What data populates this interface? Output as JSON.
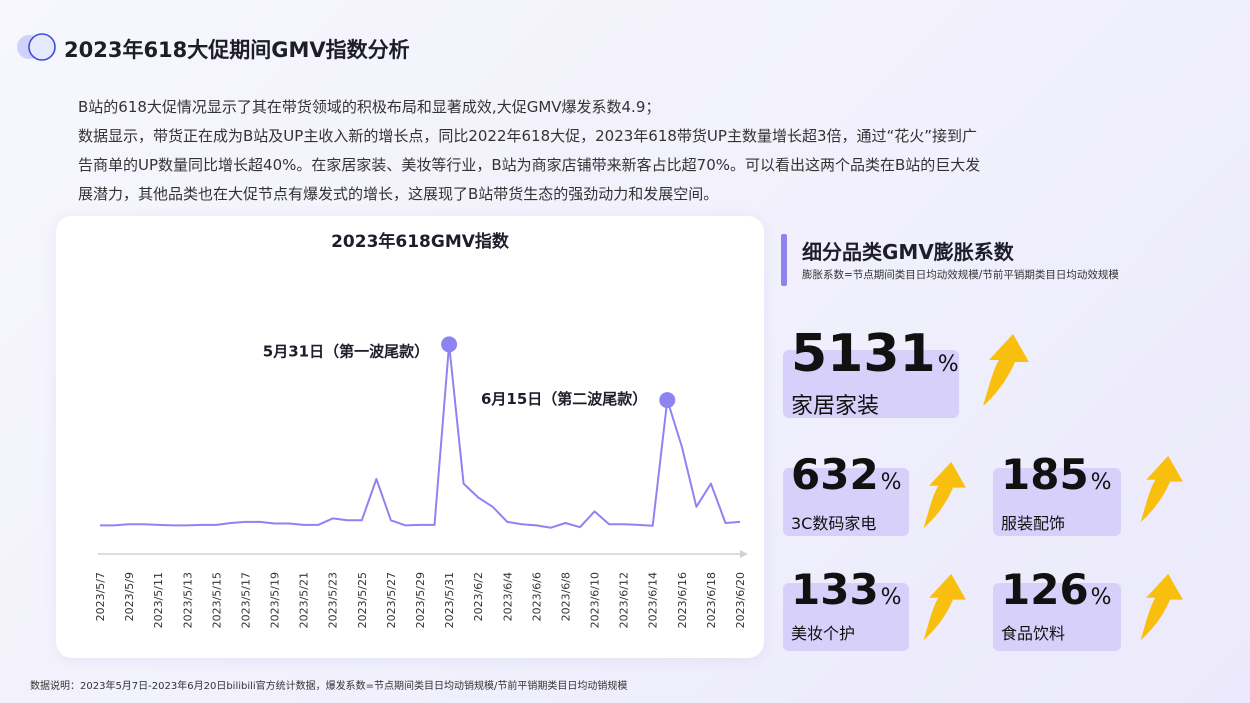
{
  "header": {
    "title": "2023年618大促期间GMV指数分析"
  },
  "description": {
    "lines": [
      "B站的618大促情况显示了其在带货领域的积极布局和显著成效,大促GMV爆发系数4.9；",
      "数据显示，带货正在成为B站及UP主收入新的增长点，同比2022年618大促，2023年618带货UP主数量增长超3倍，通过“花火”接到广",
      "告商单的UP数量同比增长超40%。在家居家装、美妆等行业，B站为商家店铺带来新客占比超70%。可以看出这两个品类在B站的巨大发",
      "展潜力，其他品类也在大促节点有爆发式的增长，这展现了B站带货生态的强劲动力和发展空间。"
    ]
  },
  "chart_data": {
    "type": "line",
    "title": "2023年618GMV指数",
    "xlabel": "",
    "ylabel": "",
    "grid": false,
    "y_axis_visible": false,
    "ylim": [
      0,
      100
    ],
    "x": [
      "2023/5/7",
      "2023/5/8",
      "2023/5/9",
      "2023/5/10",
      "2023/5/11",
      "2023/5/12",
      "2023/5/13",
      "2023/5/14",
      "2023/5/15",
      "2023/5/16",
      "2023/5/17",
      "2023/5/18",
      "2023/5/19",
      "2023/5/20",
      "2023/5/21",
      "2023/5/22",
      "2023/5/23",
      "2023/5/24",
      "2023/5/25",
      "2023/5/26",
      "2023/5/27",
      "2023/5/28",
      "2023/5/29",
      "2023/5/30",
      "2023/5/31",
      "2023/6/1",
      "2023/6/2",
      "2023/6/3",
      "2023/6/4",
      "2023/6/5",
      "2023/6/6",
      "2023/6/7",
      "2023/6/8",
      "2023/6/9",
      "2023/6/10",
      "2023/6/11",
      "2023/6/12",
      "2023/6/13",
      "2023/6/14",
      "2023/6/15",
      "2023/6/16",
      "2023/6/17",
      "2023/6/18",
      "2023/6/19",
      "2023/6/20"
    ],
    "tick_labels": [
      "2023/5/7",
      "2023/5/9",
      "2023/5/11",
      "2023/5/13",
      "2023/5/15",
      "2023/5/17",
      "2023/5/19",
      "2023/5/21",
      "2023/5/23",
      "2023/5/25",
      "2023/5/27",
      "2023/5/29",
      "2023/5/31",
      "2023/6/2",
      "2023/6/4",
      "2023/6/6",
      "2023/6/8",
      "2023/6/10",
      "2023/6/12",
      "2023/6/14",
      "2023/6/16",
      "2023/6/18",
      "2023/6/20"
    ],
    "series": [
      {
        "name": "",
        "color": "#8f83f2",
        "values": [
          2,
          2,
          2.5,
          2.5,
          2.2,
          2,
          2,
          2.2,
          2.2,
          3,
          3.5,
          3.5,
          2.8,
          2.8,
          2.2,
          2.2,
          5,
          4.2,
          4.2,
          22,
          4.2,
          2,
          2.2,
          2.2,
          80,
          20,
          14,
          10,
          3.5,
          2.5,
          2,
          1,
          3,
          1.2,
          8,
          2.5,
          2.5,
          2.2,
          1.8,
          56,
          36,
          10,
          20,
          3,
          3.5
        ]
      }
    ],
    "annotations": [
      {
        "x": "2023/5/31",
        "label": "5月31日（第一波尾款）"
      },
      {
        "x": "2023/6/15",
        "label": "6月15日（第二波尾款）"
      }
    ]
  },
  "right_panel": {
    "title": "细分品类GMV膨胀系数",
    "subtitle": "膨胀系数=节点期间类目日均动效规模/节前平销期类目日均动效规模",
    "metrics": [
      {
        "value": "5131",
        "unit": "%",
        "label": "家居家装"
      },
      {
        "value": "632",
        "unit": "%",
        "label": "3C数码家电"
      },
      {
        "value": "185",
        "unit": "%",
        "label": "服装配饰"
      },
      {
        "value": "133",
        "unit": "%",
        "label": "美妆个护"
      },
      {
        "value": "126",
        "unit": "%",
        "label": "食品饮料"
      }
    ],
    "arrow_color": "#f9bf0f",
    "highlight_color": "#d6d0fb"
  },
  "footer": {
    "note": "数据说明：2023年5月7日-2023年6月20日bilibili官方统计数据，爆发系数=节点期间类目日均动销规模/节前平销期类目日均动销规模"
  }
}
